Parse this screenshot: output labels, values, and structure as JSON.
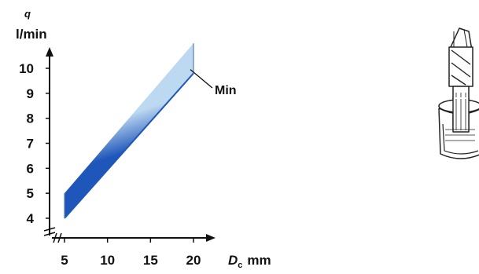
{
  "chart_data": {
    "type": "area",
    "y_symbol": "q",
    "y_unit": "l/min",
    "x_symbol": "D",
    "x_subscript": "c",
    "x_unit": "mm",
    "x_ticks": [
      "5",
      "10",
      "15",
      "20"
    ],
    "y_ticks": [
      "4",
      "5",
      "6",
      "7",
      "8",
      "9",
      "10"
    ],
    "xlim": [
      5,
      20
    ],
    "ylim": [
      4,
      10
    ],
    "grid": false,
    "series": [
      {
        "name": "Min",
        "x": [
          5,
          20
        ],
        "y_min": [
          4,
          9.8
        ],
        "y_max": [
          5,
          11.0
        ]
      }
    ],
    "band_colors": {
      "light": "#bdd9f1",
      "dark": "#1f56b9"
    },
    "illustration": "drill-in-coolant-cup-icon"
  }
}
